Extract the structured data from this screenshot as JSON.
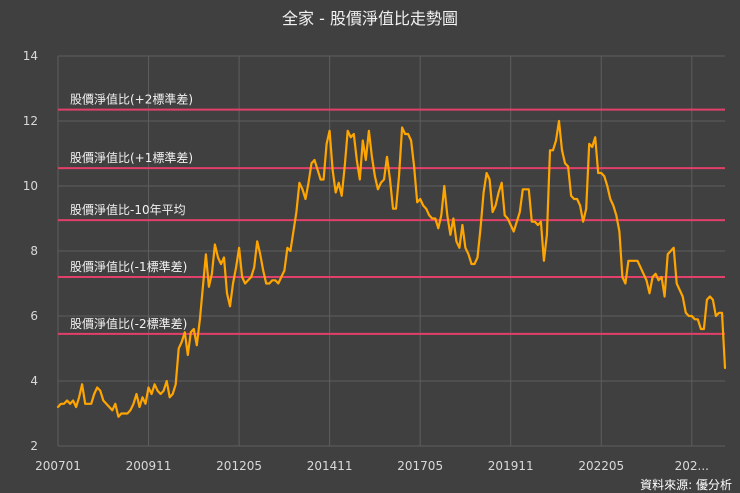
{
  "chart_data": {
    "type": "line",
    "title": "全家 - 股價淨值比走勢圖",
    "source": "資料來源: 優分析",
    "xlabel": "",
    "ylabel": "",
    "ylim": [
      2,
      14
    ],
    "yticks": [
      2,
      4,
      6,
      8,
      10,
      12,
      14
    ],
    "xticks": [
      "200701",
      "200911",
      "201205",
      "201411",
      "201705",
      "201911",
      "202205",
      "202..."
    ],
    "grid": true,
    "colors": {
      "background": "#404040",
      "line": "#ffa500",
      "reference": "#e0406a",
      "grid": "#5e5e5e"
    },
    "reference_lines": [
      {
        "name": "股價淨值比(+2標準差)",
        "value": 12.35
      },
      {
        "name": "股價淨值比(+1標準差)",
        "value": 10.55
      },
      {
        "name": "股價淨值比-10年平均",
        "value": 8.95
      },
      {
        "name": "股價淨值比(-1標準差)",
        "value": 7.2
      },
      {
        "name": "股價淨值比(-2標準差)",
        "value": 5.45
      }
    ],
    "series": [
      {
        "values": [
          3.2,
          3.3,
          3.3,
          3.4,
          3.3,
          3.4,
          3.2,
          3.5,
          3.9,
          3.3,
          3.3,
          3.3,
          3.6,
          3.8,
          3.7,
          3.4,
          3.3,
          3.2,
          3.1,
          3.3,
          2.9,
          3.0,
          3.0,
          3.0,
          3.1,
          3.3,
          3.6,
          3.2,
          3.5,
          3.3,
          3.8,
          3.6,
          3.9,
          3.7,
          3.6,
          3.7,
          4.0,
          3.5,
          3.6,
          3.9,
          5.0,
          5.2,
          5.5,
          4.8,
          5.5,
          5.6,
          5.1,
          5.9,
          6.9,
          7.9,
          6.9,
          7.3,
          8.2,
          7.8,
          7.6,
          7.8,
          6.7,
          6.3,
          7.0,
          7.5,
          8.1,
          7.2,
          7.0,
          7.1,
          7.2,
          7.5,
          8.3,
          7.9,
          7.4,
          7.0,
          7.0,
          7.1,
          7.1,
          7.0,
          7.2,
          7.4,
          8.1,
          8.0,
          8.6,
          9.2,
          10.1,
          9.9,
          9.6,
          10.1,
          10.7,
          10.8,
          10.5,
          10.2,
          10.2,
          11.3,
          11.7,
          10.5,
          9.8,
          10.1,
          9.7,
          10.6,
          11.7,
          11.5,
          11.6,
          10.8,
          10.2,
          11.4,
          10.8,
          11.7,
          10.9,
          10.3,
          9.9,
          10.1,
          10.2,
          10.9,
          10.2,
          9.3,
          9.3,
          10.3,
          11.8,
          11.6,
          11.6,
          11.4,
          10.6,
          9.5,
          9.6,
          9.4,
          9.3,
          9.1,
          9.0,
          9.0,
          8.7,
          9.1,
          10.0,
          9.1,
          8.5,
          9.0,
          8.3,
          8.1,
          8.8,
          8.1,
          7.9,
          7.6,
          7.6,
          7.8,
          8.7,
          9.8,
          10.4,
          10.2,
          9.2,
          9.4,
          9.8,
          10.1,
          9.1,
          9.0,
          8.8,
          8.6,
          8.9,
          9.2,
          9.9,
          9.9,
          9.9,
          8.9,
          8.9,
          8.8,
          8.9,
          7.7,
          8.5,
          11.1,
          11.1,
          11.4,
          12.0,
          11.1,
          10.7,
          10.6,
          9.7,
          9.6,
          9.6,
          9.4,
          8.9,
          9.3,
          11.3,
          11.2,
          11.5,
          10.4,
          10.4,
          10.3,
          10.0,
          9.6,
          9.4,
          9.1,
          8.6,
          7.2,
          7.0,
          7.7,
          7.7,
          7.7,
          7.7,
          7.5,
          7.3,
          7.1,
          6.7,
          7.2,
          7.3,
          7.1,
          7.2,
          6.6,
          7.9,
          8.0,
          8.1,
          7.0,
          6.8,
          6.6,
          6.1,
          6.0,
          6.0,
          5.9,
          5.9,
          5.6,
          5.6,
          6.5,
          6.6,
          6.5,
          6.0,
          6.1,
          6.1,
          4.4
        ]
      }
    ]
  }
}
